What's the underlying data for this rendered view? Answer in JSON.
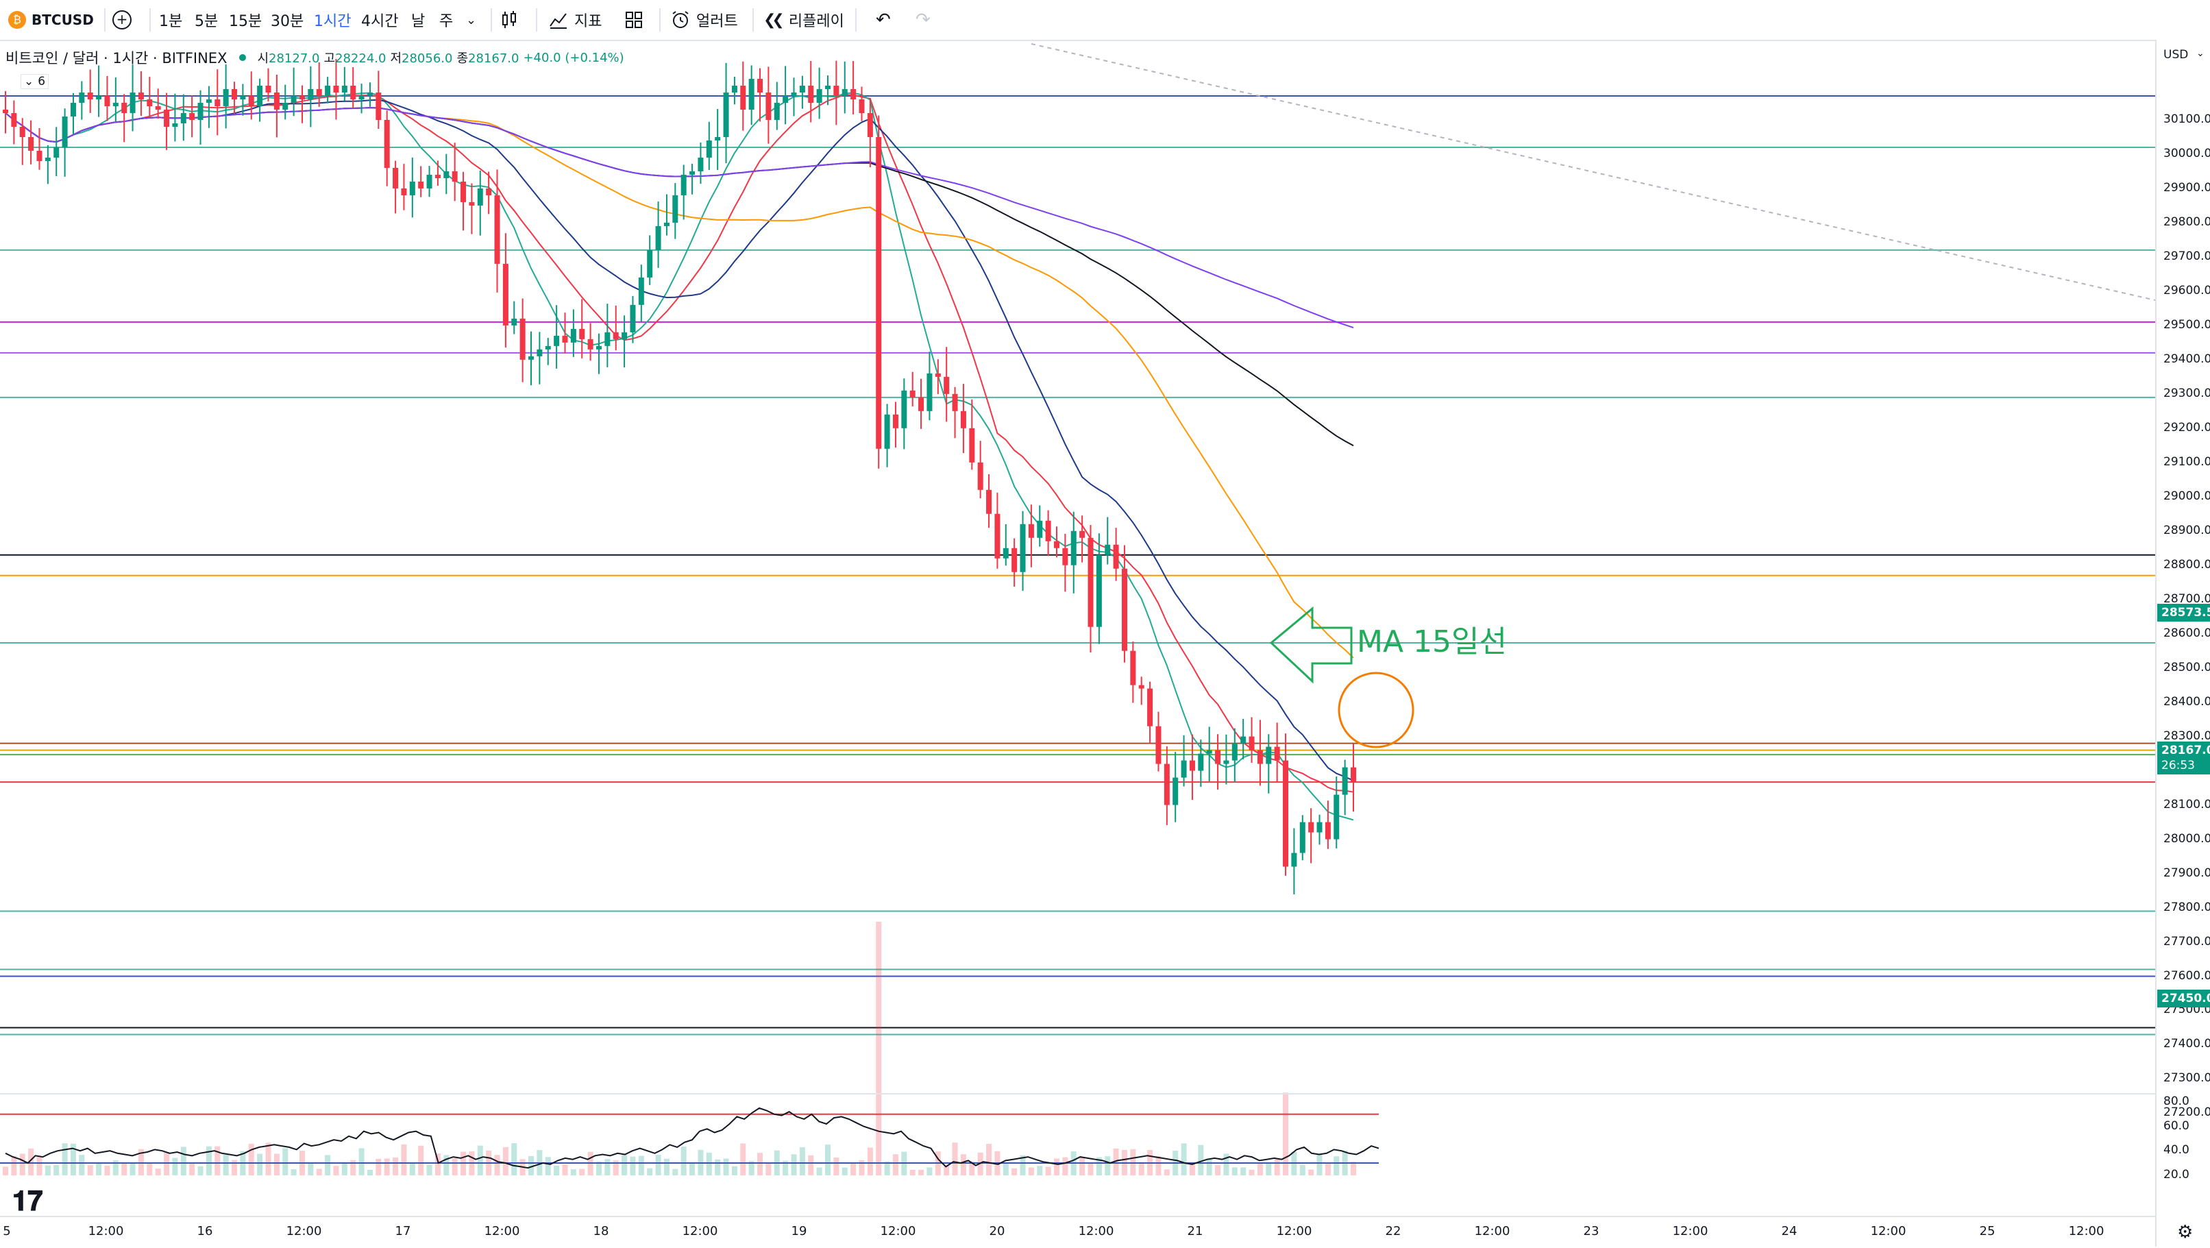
{
  "toolbar": {
    "symbol": "BTCUSD",
    "intervals": [
      "1분",
      "5분",
      "15분",
      "30분",
      "1시간",
      "4시간",
      "날",
      "주"
    ],
    "active_interval": "1시간",
    "indicators_label": "지표",
    "alert_label": "얼러트",
    "replay_label": "리플레이"
  },
  "legend": {
    "title": "비트코인 / 달러 · 1시간 · BITFINEX",
    "open_label": "시",
    "open": "28127.0",
    "high_label": "고",
    "high": "28224.0",
    "low_label": "저",
    "low": "28056.0",
    "close_label": "종",
    "close": "28167.0",
    "change": "+40.0 (+0.14%)",
    "collapse_count": "6"
  },
  "price_axis": {
    "currency": "USD",
    "labels": [
      "30100.0",
      "30000.0",
      "29900.0",
      "29800.0",
      "29700.0",
      "29600.0",
      "29500.0",
      "29400.0",
      "29300.0",
      "29200.0",
      "29100.0",
      "29000.0",
      "28900.0",
      "28800.0",
      "28700.0",
      "28600.0",
      "28500.0",
      "28400.0",
      "28300.0",
      "28200.0",
      "28100.0",
      "28000.0",
      "27900.0",
      "27800.0",
      "27700.0",
      "27600.0",
      "27500.0",
      "27400.0",
      "27300.0",
      "27200.0"
    ],
    "badge_hline": "28573.5",
    "badge_price": "28167.0",
    "badge_countdown": "26:53",
    "badge_low": "27450.0"
  },
  "osc_axis": {
    "labels": [
      "80.0",
      "60.0",
      "40.0",
      "20.0"
    ]
  },
  "time_axis": {
    "labels": [
      "5",
      "12:00",
      "16",
      "12:00",
      "17",
      "12:00",
      "18",
      "12:00",
      "19",
      "12:00",
      "20",
      "12:00",
      "21",
      "12:00",
      "22",
      "12:00",
      "23",
      "12:00",
      "24",
      "12:00",
      "25",
      "12:00"
    ]
  },
  "annotation": {
    "text": "MA 15일선"
  },
  "colors": {
    "up": "#089981",
    "down": "#f23645",
    "accent": "#2962ff",
    "annotation": "#22ab5a",
    "circle": "#f57c00"
  },
  "chart_data": {
    "type": "candlestick",
    "symbol": "BTCUSD",
    "interval": "1h",
    "ylim": [
      27150,
      30200
    ],
    "last_price": 28167.0,
    "candles_close": [
      30120,
      30080,
      30050,
      30010,
      29980,
      29990,
      30020,
      30110,
      30150,
      30180,
      30160,
      30170,
      30140,
      30150,
      30120,
      30180,
      30160,
      30140,
      30130,
      30080,
      30090,
      30120,
      30100,
      30150,
      30160,
      30140,
      30190,
      30160,
      30170,
      30140,
      30200,
      30180,
      30130,
      30150,
      30170,
      30160,
      30190,
      30170,
      30200,
      30180,
      30200,
      30160,
      30170,
      30180,
      30100,
      29960,
      29900,
      29880,
      29920,
      29900,
      29940,
      29930,
      29950,
      29920,
      29860,
      29850,
      29900,
      29880,
      29680,
      29500,
      29520,
      29400,
      29410,
      29430,
      29440,
      29470,
      29450,
      29490,
      29460,
      29430,
      29440,
      29480,
      29460,
      29480,
      29560,
      29640,
      29720,
      29790,
      29800,
      29880,
      29940,
      29950,
      29990,
      30040,
      30050,
      30180,
      30200,
      30130,
      30220,
      30180,
      30100,
      30150,
      30170,
      30180,
      30200,
      30150,
      30190,
      30200,
      30170,
      30190,
      30160,
      30120,
      30050,
      29140,
      29240,
      29200,
      29310,
      29290,
      29250,
      29360,
      29350,
      29300,
      29250,
      29200,
      29100,
      29020,
      28950,
      28820,
      28850,
      28780,
      28920,
      28880,
      28930,
      28870,
      28850,
      28800,
      28900,
      28880,
      28620,
      28830,
      28860,
      28790,
      28550,
      28450,
      28440,
      28330,
      28220,
      28100,
      28180,
      28230,
      28200,
      28250,
      28260,
      28220,
      28230,
      28280,
      28300,
      28260,
      28220,
      28270,
      28230,
      27920,
      27960,
      28050,
      28020,
      28050,
      28000,
      28130,
      28210,
      28167
    ],
    "volume_scale": "relative",
    "horizontal_levels": [
      30170,
      30020,
      29720,
      29510,
      29420,
      29290,
      28830,
      28770,
      28573.5,
      28280,
      28260,
      28247,
      28167,
      27790,
      27620,
      27600,
      27450,
      27430
    ],
    "moving_averages": [
      {
        "name": "MA 15",
        "color": "#f23645"
      },
      {
        "name": "MA 9",
        "color": "#22ab94"
      },
      {
        "name": "MA 25",
        "color": "#1e3a8a"
      },
      {
        "name": "MA 50",
        "color": "#ff9800"
      },
      {
        "name": "MA 100",
        "color": "#131722"
      },
      {
        "name": "MA 200",
        "color": "#7e3ff2"
      }
    ],
    "oscillator": {
      "upper": 70,
      "lower": 30,
      "ylim": [
        20,
        80
      ],
      "values": [
        38,
        35,
        33,
        30,
        36,
        35,
        38,
        40,
        41,
        42,
        40,
        42,
        38,
        39,
        40,
        38,
        37,
        36,
        38,
        39,
        41,
        40,
        38,
        39,
        37,
        36,
        38,
        39,
        40,
        38,
        37,
        36,
        38,
        41,
        43,
        44,
        45,
        44,
        43,
        41,
        46,
        44,
        45,
        47,
        49,
        48,
        52,
        50,
        56,
        54,
        55,
        51,
        49,
        52,
        55,
        56,
        53,
        52,
        30,
        33,
        35,
        34,
        36,
        33,
        35,
        34,
        31,
        30,
        28,
        27,
        26,
        28,
        30,
        29,
        32,
        34,
        33,
        35,
        33,
        36,
        37,
        36,
        38,
        37,
        40,
        42,
        40,
        38,
        41,
        45,
        43,
        47,
        49,
        56,
        58,
        55,
        57,
        62,
        68,
        66,
        71,
        75,
        73,
        70,
        69,
        72,
        68,
        66,
        70,
        64,
        62,
        67,
        68,
        66,
        63,
        60,
        58,
        56,
        55,
        54,
        56,
        50,
        47,
        44,
        42,
        33,
        27,
        31,
        30,
        32,
        28,
        31,
        30,
        29,
        32,
        33,
        34,
        35,
        33,
        31,
        30,
        29,
        30,
        32,
        35,
        34,
        33,
        32,
        30,
        32,
        33,
        34,
        35,
        36,
        35,
        34,
        33,
        32,
        30,
        29,
        31,
        33,
        34,
        33,
        35,
        33,
        36,
        35,
        32,
        33,
        34,
        33,
        36,
        41,
        43,
        38,
        37,
        38,
        41,
        40,
        38,
        37,
        40,
        44,
        42
      ]
    }
  }
}
